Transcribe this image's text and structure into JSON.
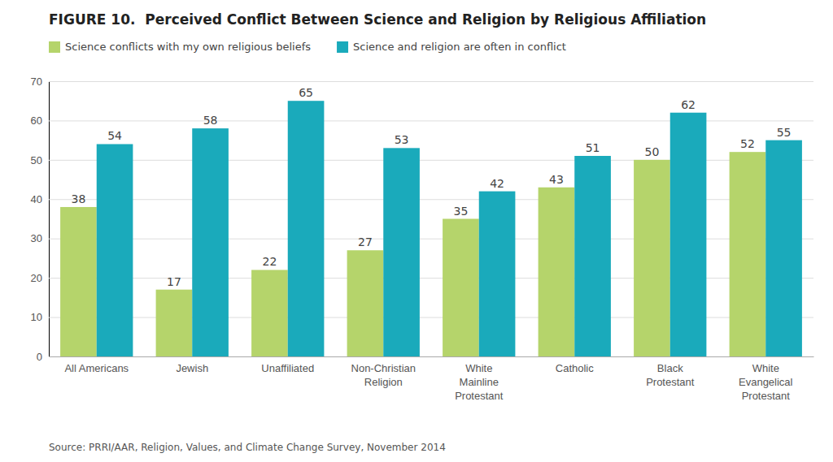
{
  "chart_data": {
    "type": "bar",
    "title": "FIGURE 10.  Perceived Conflict Between Science and Religion by Religious Affiliation",
    "categories": [
      "All Americans",
      "Jewish",
      "Unaffiliated",
      "Non-Christian\nReligion",
      "White\nMainline\nProtestant",
      "Catholic",
      "Black\nProtestant",
      "White\nEvangelical\nProtestant"
    ],
    "series": [
      {
        "name": "Science conflicts with my own religious beliefs",
        "color": "#b5d46b",
        "values": [
          38,
          17,
          22,
          27,
          35,
          43,
          50,
          52
        ]
      },
      {
        "name": "Science and religion are often in conflict",
        "color": "#1aaabb",
        "values": [
          54,
          58,
          65,
          53,
          42,
          51,
          62,
          55
        ]
      }
    ],
    "ylim": [
      0,
      70
    ],
    "yticks": [
      0,
      10,
      20,
      30,
      40,
      50,
      60,
      70
    ],
    "grid": true,
    "legend": "top",
    "data_labels": true,
    "source": "Source: PRRI/AAR, Religion, Values, and Climate Change Survey, November 2014"
  }
}
